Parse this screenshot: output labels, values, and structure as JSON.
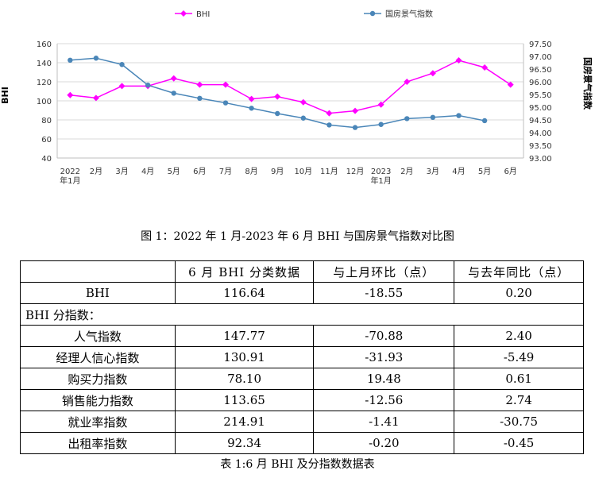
{
  "chart_data": {
    "type": "line",
    "x": [
      "2022年1月",
      "2月",
      "3月",
      "4月",
      "5月",
      "6月",
      "7月",
      "8月",
      "9月",
      "10月",
      "11月",
      "12月",
      "2023年1月",
      "2月",
      "3月",
      "4月",
      "5月",
      "6月"
    ],
    "x_tick_lines": [
      [
        "2022",
        "年1月"
      ],
      [
        "2月"
      ],
      [
        "3月"
      ],
      [
        "4月"
      ],
      [
        "5月"
      ],
      [
        "6月"
      ],
      [
        "7月"
      ],
      [
        "8月"
      ],
      [
        "9月"
      ],
      [
        "10月"
      ],
      [
        "11月"
      ],
      [
        "12月"
      ],
      [
        "2023",
        "年1月"
      ],
      [
        "2月"
      ],
      [
        "3月"
      ],
      [
        "4月"
      ],
      [
        "5月"
      ],
      [
        "6月"
      ]
    ],
    "series": [
      {
        "name": "BHI",
        "axis": "left",
        "color": "#ff00ff",
        "marker": "diamond",
        "values": [
          106,
          103,
          115.5,
          115.5,
          123.5,
          117,
          117,
          102,
          104.5,
          98.5,
          87,
          89.5,
          96,
          120,
          129,
          142.5,
          135,
          117
        ]
      },
      {
        "name": "国房景气指数",
        "axis": "right",
        "color": "#4a86b8",
        "marker": "circle",
        "values": [
          96.85,
          96.93,
          96.68,
          95.87,
          95.55,
          95.35,
          95.17,
          94.96,
          94.75,
          94.57,
          94.3,
          94.2,
          94.32,
          94.55,
          94.6,
          94.67,
          94.47,
          null
        ]
      }
    ],
    "y_left": {
      "label": "BHI",
      "min": 40,
      "max": 160,
      "step": 20,
      "ticks": [
        "40",
        "60",
        "80",
        "100",
        "120",
        "140",
        "160"
      ]
    },
    "y_right": {
      "label": "国房景气指数",
      "min": 93.0,
      "max": 97.5,
      "step": 0.5,
      "ticks": [
        "93.00",
        "93.50",
        "94.00",
        "94.50",
        "95.00",
        "95.50",
        "96.00",
        "96.50",
        "97.00",
        "97.50"
      ]
    },
    "legend_position": "top",
    "grid": true
  },
  "figure_caption": "图 1：2022 年 1 月-2023 年 6 月 BHI 与国房景气指数对比图",
  "table": {
    "header": [
      "",
      "6 月 BHI 分类数据",
      "与上月环比（点）",
      "与去年同比（点）"
    ],
    "bhi_row": {
      "label": "BHI",
      "value": "116.64",
      "mom": "-18.55",
      "yoy": "0.20"
    },
    "section_label": "BHI 分指数：",
    "rows": [
      {
        "label": "人气指数",
        "value": "147.77",
        "mom": "-70.88",
        "yoy": "2.40"
      },
      {
        "label": "经理人信心指数",
        "value": "130.91",
        "mom": "-31.93",
        "yoy": "-5.49"
      },
      {
        "label": "购买力指数",
        "value": "78.10",
        "mom": "19.48",
        "yoy": "0.61"
      },
      {
        "label": "销售能力指数",
        "value": "113.65",
        "mom": "-12.56",
        "yoy": "2.74"
      },
      {
        "label": "就业率指数",
        "value": "214.91",
        "mom": "-1.41",
        "yoy": "-30.75"
      },
      {
        "label": "出租率指数",
        "value": "92.34",
        "mom": "-0.20",
        "yoy": "-0.45"
      }
    ]
  },
  "table_caption": "表 1:6 月 BHI 及分指数数据表"
}
